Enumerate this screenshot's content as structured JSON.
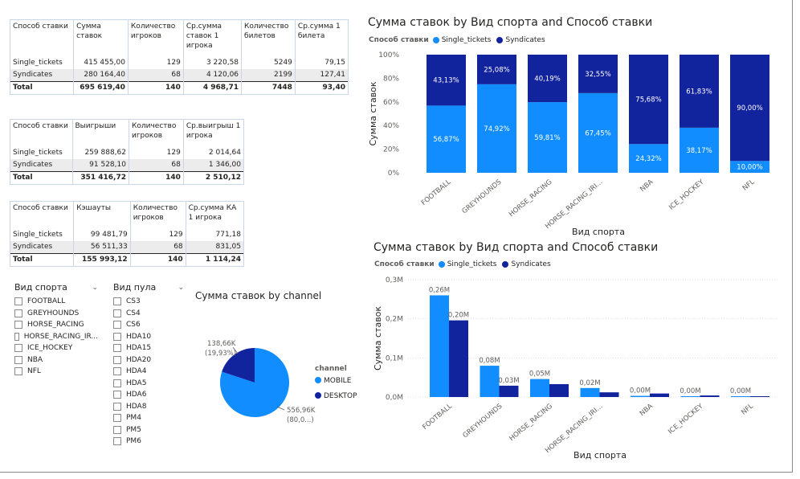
{
  "table_stakes": {
    "headers": [
      "Способ ставки",
      "Сумма ставок",
      "Количество игроков",
      "Ср.сумма ставок 1 игрока",
      "Количество билетов",
      "Ср.сумма 1 билета"
    ],
    "rows": [
      [
        "Single_tickets",
        "415 455,00",
        "129",
        "3 220,58",
        "5249",
        "79,15"
      ],
      [
        "Syndicates",
        "280 164,40",
        "68",
        "4 120,06",
        "2199",
        "127,41"
      ],
      [
        "Total",
        "695 619,40",
        "140",
        "4 968,71",
        "7448",
        "93,40"
      ]
    ]
  },
  "table_winnings": {
    "headers": [
      "Способ ставки",
      "Выигрыши",
      "Количество игроков",
      "Ср.выигрыш 1 игрока"
    ],
    "rows": [
      [
        "Single_tickets",
        "259 888,62",
        "129",
        "2 014,64"
      ],
      [
        "Syndicates",
        "91 528,10",
        "68",
        "1 346,00"
      ],
      [
        "Total",
        "351 416,72",
        "140",
        "2 510,12"
      ]
    ]
  },
  "table_cashouts": {
    "headers": [
      "Способ ставки",
      "Кэшауты",
      "Количество игроков",
      "Ср.сумма КА 1 игрока"
    ],
    "rows": [
      [
        "Single_tickets",
        "99 481,79",
        "129",
        "771,18"
      ],
      [
        "Syndicates",
        "56 511,33",
        "68",
        "831,05"
      ],
      [
        "Total",
        "155 993,12",
        "140",
        "1 114,24"
      ]
    ]
  },
  "slicer_sport": {
    "title": "Вид спорта",
    "items": [
      "FOOTBALL",
      "GREYHOUNDS",
      "HORSE_RACING",
      "HORSE_RACING_IR...",
      "ICE_HOCKEY",
      "NBA",
      "NFL"
    ]
  },
  "slicer_pool": {
    "title": "Вид пула",
    "items": [
      "CS3",
      "CS4",
      "CS6",
      "HDA10",
      "HDA15",
      "HDA20",
      "HDA4",
      "HDA5",
      "HDA6",
      "HDA8",
      "PM4",
      "PM5",
      "PM6"
    ]
  },
  "colors": {
    "single": "#118dff",
    "syndicates": "#12239e"
  },
  "chart_data": [
    {
      "type": "bar",
      "stacked": "100%",
      "title": "Сумма ставок by Вид спорта and Способ ставки",
      "legend_title": "Способ ставки",
      "xlabel": "Вид спорта",
      "ylabel": "Сумма ставок",
      "y_ticks": [
        "0%",
        "20%",
        "40%",
        "60%",
        "80%",
        "100%"
      ],
      "categories": [
        "FOOTBALL",
        "GREYHOUNDS",
        "HORSE_RACING",
        "HORSE_RACING_IRI...",
        "NBA",
        "ICE_HOCKEY",
        "NFL"
      ],
      "series": [
        {
          "name": "Single_tickets",
          "values": [
            56.87,
            74.92,
            59.81,
            67.45,
            24.32,
            38.17,
            10.0
          ],
          "labels": [
            "56,87%",
            "74,92%",
            "59,81%",
            "67,45%",
            "24,32%",
            "38,17%",
            "10,00%"
          ]
        },
        {
          "name": "Syndicates",
          "values": [
            43.13,
            25.08,
            40.19,
            32.55,
            75.68,
            61.83,
            90.0
          ],
          "labels": [
            "43,13%",
            "25,08%",
            "40,19%",
            "32,55%",
            "75,68%",
            "61,83%",
            "90,00%"
          ]
        }
      ],
      "ylim": [
        0,
        100
      ]
    },
    {
      "type": "bar",
      "title": "Сумма ставок by Вид спорта and Способ ставки",
      "legend_title": "Способ ставки",
      "xlabel": "Вид спорта",
      "ylabel": "Сумма ставок",
      "y_ticks": [
        "0,0M",
        "0,1M",
        "0,2M",
        "0,3M"
      ],
      "categories": [
        "FOOTBALL",
        "GREYHOUNDS",
        "HORSE_RACING",
        "HORSE_RACING_IRI...",
        "NBA",
        "ICE_HOCKEY",
        "NFL"
      ],
      "series": [
        {
          "name": "Single_tickets",
          "values": [
            0.26,
            0.08,
            0.046,
            0.023,
            0.003,
            0.001,
            0.002
          ],
          "labels": [
            "0,26M",
            "0,08M",
            "0,05M",
            "0,02M",
            "0,00M",
            "0,00M",
            "0,00M"
          ]
        },
        {
          "name": "Syndicates",
          "values": [
            0.196,
            0.029,
            0.033,
            0.012,
            0.009,
            0.004,
            0.002
          ],
          "labels": [
            "0,20M",
            "0,03M",
            "",
            "",
            "",
            "",
            ""
          ]
        }
      ],
      "ylim": [
        0,
        0.3
      ]
    },
    {
      "type": "pie",
      "title": "Сумма ставок by channel",
      "legend_title": "channel",
      "categories": [
        "MOBILE",
        "DESKTOP"
      ],
      "values": [
        556.96,
        138.66
      ],
      "labels": [
        "556,96K (80,0...)",
        "138,66K (19,93%)"
      ]
    }
  ]
}
